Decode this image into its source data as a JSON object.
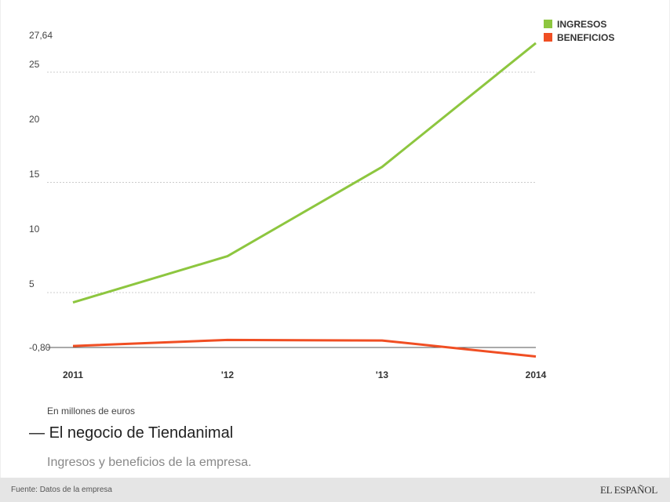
{
  "chart_data": {
    "type": "line",
    "title": "El negocio de Tiendanimal",
    "subtitle": "Ingresos y beneficios de la empresa.",
    "unit_label": "En millones de euros",
    "source": "Fuente: Datos de la empresa",
    "categories": [
      "2011",
      "'12",
      "'13",
      "2014"
    ],
    "series": [
      {
        "name": "INGRESOS",
        "color": "#8dc63f",
        "values": [
          4.1,
          8.3,
          16.4,
          27.64
        ]
      },
      {
        "name": "BENEFICIOS",
        "color": "#f04e23",
        "values": [
          0.15,
          0.7,
          0.65,
          -0.8
        ]
      }
    ],
    "y_ticks": [
      "27,64",
      "25",
      "20",
      "15",
      "10",
      "5",
      "-0,80"
    ],
    "ylim": [
      -0.8,
      27.64
    ],
    "gridlines": [
      25,
      15,
      5
    ],
    "legend_position": "top-right"
  },
  "legend": {
    "items": [
      {
        "label": "INGRESOS",
        "color": "#8dc63f"
      },
      {
        "label": "BENEFICIOS",
        "color": "#f04e23"
      }
    ]
  },
  "footer": {
    "source": "Fuente: Datos de la empresa",
    "brand": "EL ESPAÑOL"
  }
}
